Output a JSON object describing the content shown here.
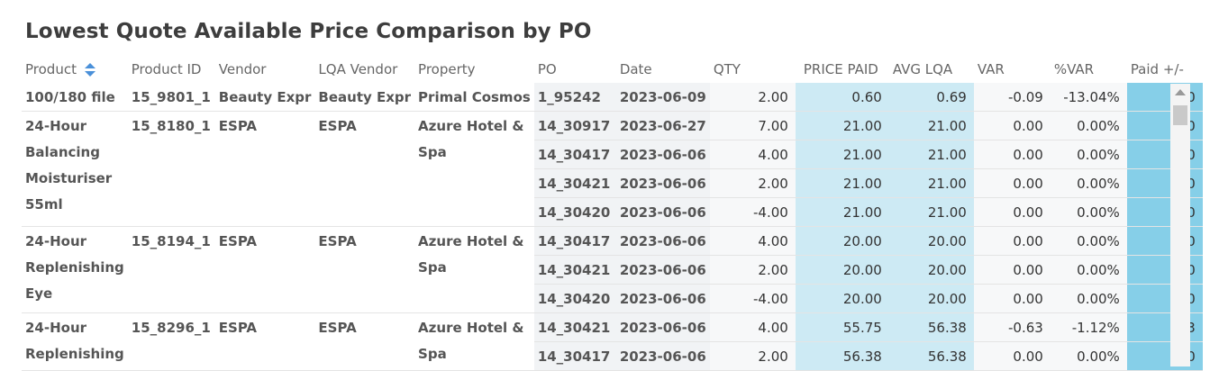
{
  "title": "Lowest Quote Available Price Comparison by PO",
  "columns": {
    "product": "Product",
    "product_id": "Product ID",
    "vendor": "Vendor",
    "lqa_vendor": "LQA Vendor",
    "property": "Property",
    "po": "PO",
    "date": "Date",
    "qty": "QTY",
    "price_paid": "PRICE PAID",
    "avg_lqa": "AVG LQA",
    "var": "VAR",
    "pct_var": "%VAR",
    "paid": "Paid +/-"
  },
  "groups": [
    {
      "product": "100/180 file",
      "product_id": "15_9801_1",
      "vendor": "Beauty Expr",
      "lqa_vendor": "Beauty Expr",
      "property": "Primal Cosmos",
      "rows": [
        {
          "po": "1_95242",
          "date": "2023-06-09",
          "qty": "2.00",
          "price_paid": "0.60",
          "avg_lqa": "0.69",
          "var": "-0.09",
          "pct_var": "-13.04%",
          "paid": "0"
        }
      ]
    },
    {
      "product": "24-Hour Balancing Moisturiser 55ml",
      "product_id": "15_8180_1",
      "vendor": "ESPA",
      "lqa_vendor": "ESPA",
      "property": "Azure Hotel & Spa",
      "rows": [
        {
          "po": "14_30917",
          "date": "2023-06-27",
          "qty": "7.00",
          "price_paid": "21.00",
          "avg_lqa": "21.00",
          "var": "0.00",
          "pct_var": "0.00%",
          "paid": "0"
        },
        {
          "po": "14_30417",
          "date": "2023-06-06",
          "qty": "4.00",
          "price_paid": "21.00",
          "avg_lqa": "21.00",
          "var": "0.00",
          "pct_var": "0.00%",
          "paid": "0"
        },
        {
          "po": "14_30421",
          "date": "2023-06-06",
          "qty": "2.00",
          "price_paid": "21.00",
          "avg_lqa": "21.00",
          "var": "0.00",
          "pct_var": "0.00%",
          "paid": "0"
        },
        {
          "po": "14_30420",
          "date": "2023-06-06",
          "qty": "-4.00",
          "price_paid": "21.00",
          "avg_lqa": "21.00",
          "var": "0.00",
          "pct_var": "0.00%",
          "paid": "0"
        }
      ]
    },
    {
      "product": "24-Hour Replenishing Eye",
      "product_id": "15_8194_1",
      "vendor": "ESPA",
      "lqa_vendor": "ESPA",
      "property": "Azure Hotel & Spa",
      "rows": [
        {
          "po": "14_30417",
          "date": "2023-06-06",
          "qty": "4.00",
          "price_paid": "20.00",
          "avg_lqa": "20.00",
          "var": "0.00",
          "pct_var": "0.00%",
          "paid": "0"
        },
        {
          "po": "14_30421",
          "date": "2023-06-06",
          "qty": "2.00",
          "price_paid": "20.00",
          "avg_lqa": "20.00",
          "var": "0.00",
          "pct_var": "0.00%",
          "paid": "0"
        },
        {
          "po": "14_30420",
          "date": "2023-06-06",
          "qty": "-4.00",
          "price_paid": "20.00",
          "avg_lqa": "20.00",
          "var": "0.00",
          "pct_var": "0.00%",
          "paid": "0"
        }
      ]
    },
    {
      "product": "24-Hour Replenishing",
      "product_id": "15_8296_1",
      "vendor": "ESPA",
      "lqa_vendor": "ESPA",
      "property": "Azure Hotel & Spa",
      "rows": [
        {
          "po": "14_30421",
          "date": "2023-06-06",
          "qty": "4.00",
          "price_paid": "55.75",
          "avg_lqa": "56.38",
          "var": "-0.63",
          "pct_var": "-1.12%",
          "paid": "3"
        },
        {
          "po": "14_30417",
          "date": "2023-06-06",
          "qty": "2.00",
          "price_paid": "56.38",
          "avg_lqa": "56.38",
          "var": "0.00",
          "pct_var": "0.00%",
          "paid": "0"
        }
      ]
    }
  ]
}
